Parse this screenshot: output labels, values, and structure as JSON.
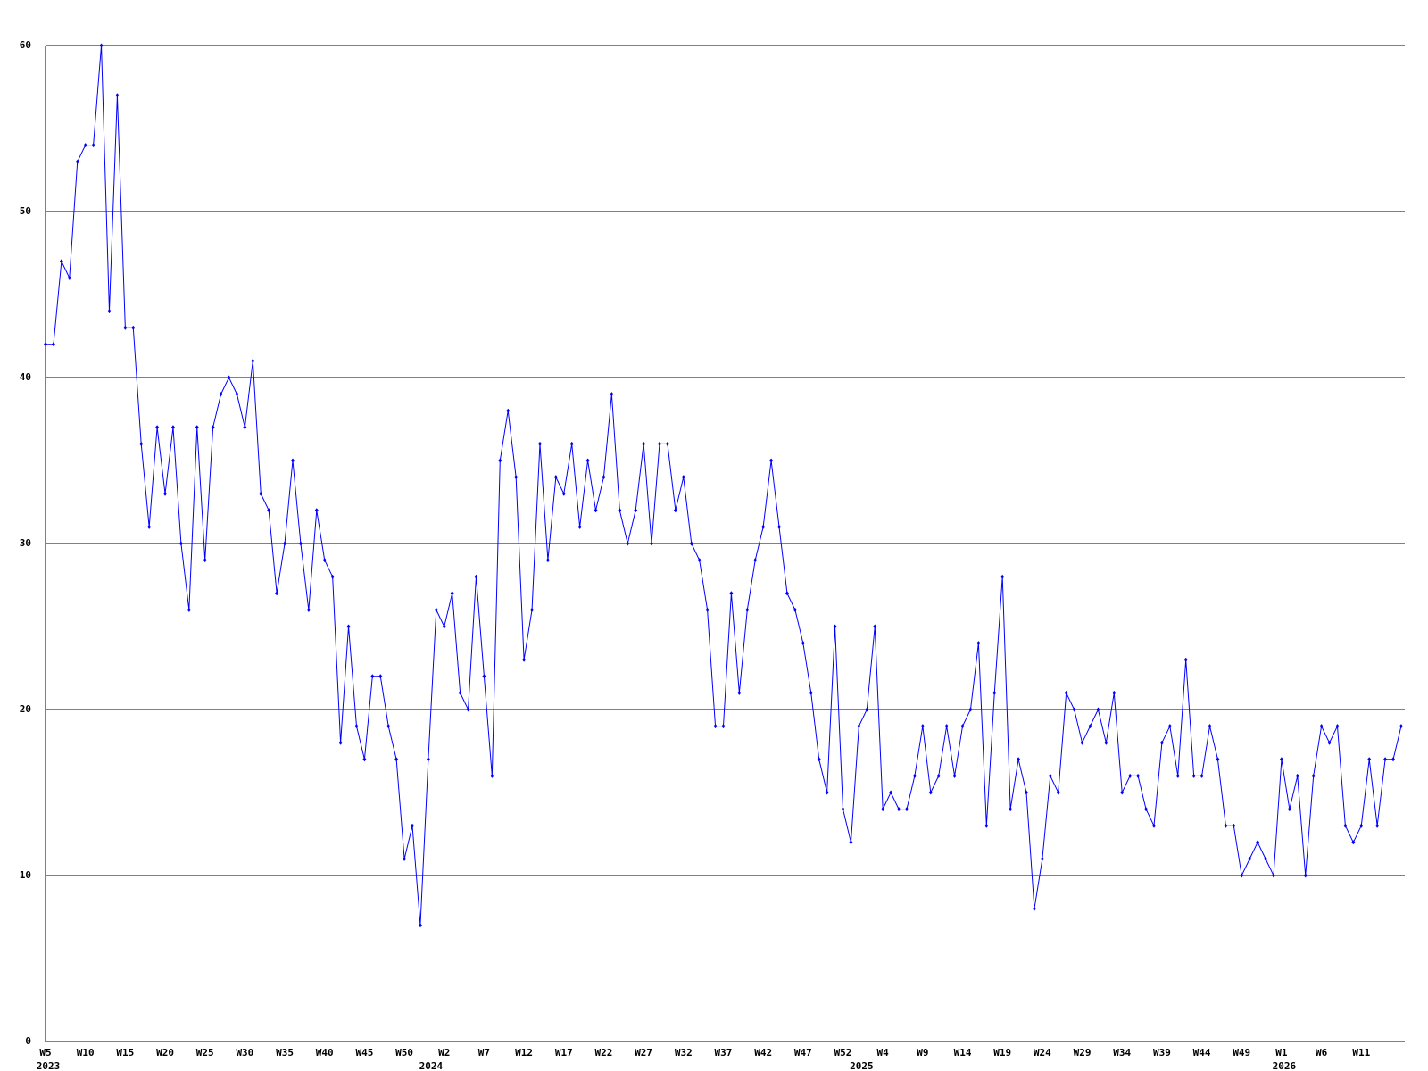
{
  "chart_data": {
    "type": "line",
    "categories": [
      "W5",
      null,
      null,
      null,
      null,
      "W10",
      null,
      null,
      null,
      null,
      "W15",
      null,
      null,
      null,
      null,
      "W20",
      null,
      null,
      null,
      null,
      "W25",
      null,
      null,
      null,
      null,
      "W30",
      null,
      null,
      null,
      null,
      "W35",
      null,
      null,
      null,
      null,
      "W40",
      null,
      null,
      null,
      null,
      "W45",
      null,
      null,
      null,
      null,
      "W50",
      null,
      null,
      null,
      null,
      "W2",
      null,
      null,
      null,
      null,
      "W7",
      null,
      null,
      null,
      null,
      "W12",
      null,
      null,
      null,
      null,
      "W17",
      null,
      null,
      null,
      null,
      "W22",
      null,
      null,
      null,
      null,
      "W27",
      null,
      null,
      null,
      null,
      "W32",
      null,
      null,
      null,
      null,
      "W37",
      null,
      null,
      null,
      null,
      "W42",
      null,
      null,
      null,
      null,
      "W47",
      null,
      null,
      null,
      null,
      "W52",
      null,
      null,
      null,
      null,
      "W4",
      null,
      null,
      null,
      null,
      "W9",
      null,
      null,
      null,
      null,
      "W14",
      null,
      null,
      null,
      null,
      "W19",
      null,
      null,
      null,
      null,
      "W24",
      null,
      null,
      null,
      null,
      "W29",
      null,
      null,
      null,
      null,
      "W34",
      null,
      null,
      null,
      null,
      "W39",
      null,
      null,
      null,
      null,
      "W44",
      null,
      null,
      null,
      null,
      "W49",
      null,
      null,
      null,
      null,
      "W1",
      null,
      null,
      null,
      null,
      "W6",
      null,
      null,
      null,
      null,
      "W11",
      null,
      null,
      null,
      null,
      null
    ],
    "category_years": [
      "2023",
      null,
      null,
      null,
      null,
      null,
      null,
      null,
      null,
      null,
      null,
      null,
      null,
      null,
      null,
      null,
      null,
      null,
      null,
      null,
      null,
      null,
      null,
      null,
      null,
      null,
      null,
      null,
      null,
      null,
      null,
      null,
      null,
      null,
      null,
      null,
      null,
      null,
      null,
      null,
      null,
      null,
      null,
      null,
      null,
      null,
      null,
      null,
      "2024",
      null,
      null,
      null,
      null,
      null,
      null,
      null,
      null,
      null,
      null,
      null,
      null,
      null,
      null,
      null,
      null,
      null,
      null,
      null,
      null,
      null,
      null,
      null,
      null,
      null,
      null,
      null,
      null,
      null,
      null,
      null,
      null,
      null,
      null,
      null,
      null,
      null,
      null,
      null,
      null,
      null,
      null,
      null,
      null,
      null,
      null,
      null,
      null,
      null,
      null,
      null,
      null,
      null,
      "2025",
      null,
      null,
      null,
      null,
      null,
      null,
      null,
      null,
      null,
      null,
      null,
      null,
      null,
      null,
      null,
      null,
      null,
      null,
      null,
      null,
      null,
      null,
      null,
      null,
      null,
      null,
      null,
      null,
      null,
      null,
      null,
      null,
      null,
      null,
      null,
      null,
      null,
      null,
      null,
      null,
      null,
      null,
      null,
      null,
      null,
      null,
      null,
      null,
      null,
      null,
      null,
      null,
      "2026",
      null,
      null,
      null,
      null,
      null,
      null,
      null,
      null,
      null,
      null,
      null,
      null,
      null,
      null,
      null
    ],
    "series": [
      {
        "color": "#0000ff",
        "values": [
          42,
          42,
          47,
          46,
          53,
          54,
          54,
          60,
          44,
          57,
          43,
          43,
          36,
          31,
          37,
          33,
          37,
          30,
          26,
          37,
          29,
          37,
          39,
          40,
          39,
          37,
          41,
          33,
          32,
          27,
          30,
          35,
          30,
          26,
          32,
          29,
          28,
          18,
          25,
          19,
          17,
          22,
          22,
          19,
          17,
          11,
          13,
          7,
          17,
          26,
          25,
          27,
          21,
          20,
          28,
          22,
          16,
          35,
          38,
          34,
          23,
          26,
          36,
          29,
          34,
          33,
          36,
          31,
          35,
          32,
          34,
          39,
          32,
          30,
          32,
          36,
          30,
          36,
          36,
          32,
          34,
          30,
          29,
          26,
          19,
          19,
          27,
          21,
          26,
          29,
          31,
          35,
          31,
          27,
          26,
          24,
          21,
          17,
          15,
          25,
          14,
          12,
          19,
          20,
          25,
          14,
          15,
          14,
          14,
          16,
          19,
          15,
          16,
          19,
          16,
          19,
          20,
          24,
          13,
          21,
          28,
          14,
          17,
          15,
          8,
          11,
          16,
          15,
          21,
          20,
          18,
          19,
          20,
          18,
          21,
          15,
          16,
          16,
          14,
          13,
          18,
          19,
          16,
          23,
          16,
          16,
          19,
          17,
          13,
          13,
          10,
          11,
          12,
          11,
          10,
          17,
          14,
          16,
          10,
          16,
          19,
          18,
          19,
          13,
          12,
          13,
          17,
          13,
          17,
          17,
          19
        ]
      }
    ],
    "ylim": [
      0,
      60
    ],
    "yticks": [
      0,
      10,
      20,
      30,
      40,
      50,
      60
    ],
    "grid": true
  }
}
